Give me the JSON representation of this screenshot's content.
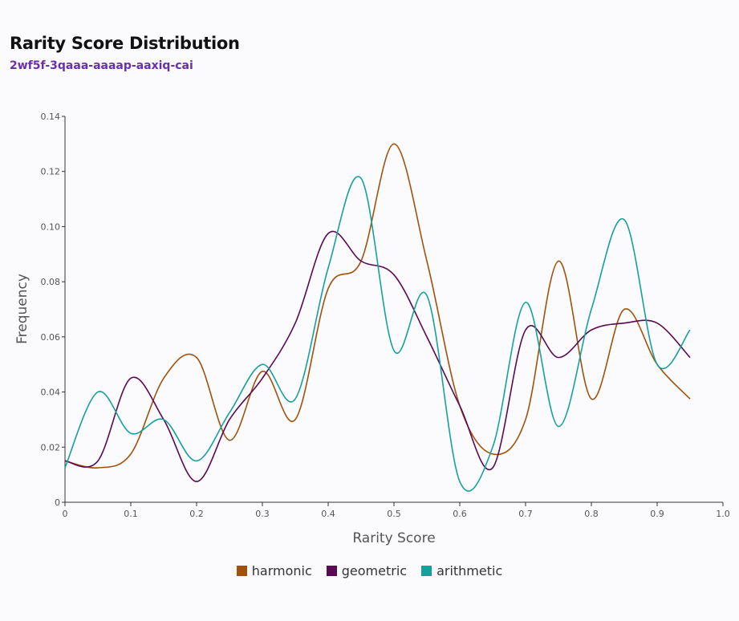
{
  "header": {
    "title": "Rarity Score Distribution",
    "subtitle": "2wf5f-3qaaa-aaaap-aaxiq-cai"
  },
  "chart_data": {
    "type": "line",
    "xlabel": "Rarity Score",
    "ylabel": "Frequency",
    "xlim": [
      0,
      1.0
    ],
    "ylim": [
      0,
      0.14
    ],
    "x_ticks": [
      "0",
      "0.1",
      "0.2",
      "0.3",
      "0.4",
      "0.5",
      "0.6",
      "0.7",
      "0.8",
      "0.9",
      "1.0"
    ],
    "y_ticks": [
      "0",
      "0.02",
      "0.04",
      "0.06",
      "0.08",
      "0.10",
      "0.12",
      "0.14"
    ],
    "legend_position": "bottom",
    "grid": false,
    "x": [
      0,
      0.05,
      0.1,
      0.15,
      0.2,
      0.25,
      0.3,
      0.35,
      0.4,
      0.45,
      0.5,
      0.55,
      0.6,
      0.65,
      0.7,
      0.75,
      0.8,
      0.85,
      0.9,
      0.95
    ],
    "series": [
      {
        "name": "harmonic",
        "color": "#a0520c",
        "values": [
          0.015,
          0.0125,
          0.0175,
          0.045,
          0.0525,
          0.0225,
          0.0475,
          0.03,
          0.0775,
          0.0875,
          0.13,
          0.0875,
          0.035,
          0.0175,
          0.03,
          0.0875,
          0.0375,
          0.07,
          0.05,
          0.0375
        ]
      },
      {
        "name": "geometric",
        "color": "#5a0a52",
        "values": [
          0.015,
          0.015,
          0.045,
          0.03,
          0.0075,
          0.03,
          0.045,
          0.065,
          0.0975,
          0.0875,
          0.0825,
          0.06,
          0.035,
          0.0125,
          0.0625,
          0.0525,
          0.0625,
          0.065,
          0.065,
          0.0525
        ]
      },
      {
        "name": "arithmetic",
        "color": "#16a09c",
        "values": [
          0.0125,
          0.04,
          0.025,
          0.03,
          0.015,
          0.0325,
          0.05,
          0.0375,
          0.085,
          0.1175,
          0.055,
          0.075,
          0.0075,
          0.02,
          0.0725,
          0.0275,
          0.07,
          0.1025,
          0.05,
          0.0625
        ]
      }
    ]
  }
}
